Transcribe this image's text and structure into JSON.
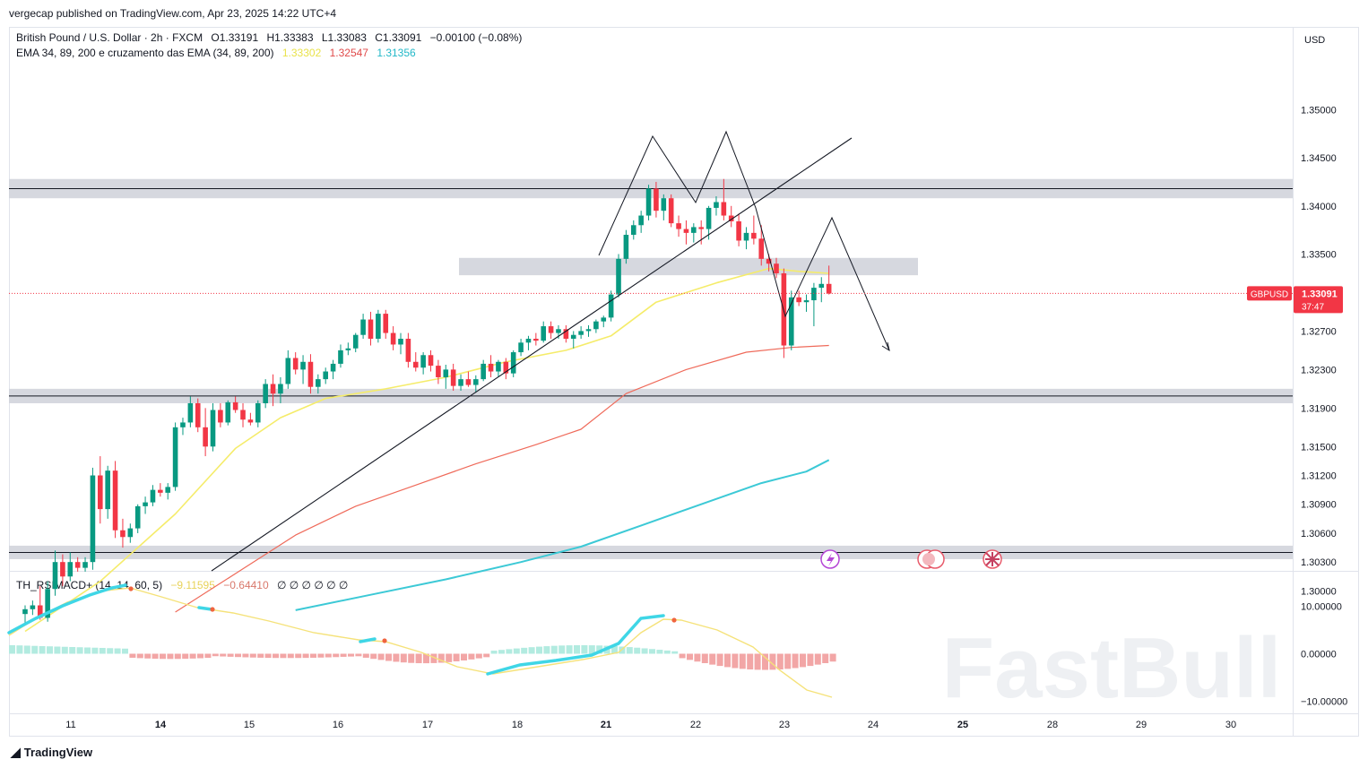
{
  "header": {
    "publisher": "vergecap published on TradingView.com, Apr 23, 2025 14:22 UTC+4"
  },
  "legend": {
    "symbol": "British Pound / U.S. Dollar · 2h · FXCM",
    "open": "O1.33191",
    "high": "H1.33383",
    "low": "L1.33083",
    "close": "C1.33091",
    "change": "−0.00100 (−0.08%)",
    "ema_label": "EMA 34, 89, 200 e cruzamento das EMA (34, 89, 200)",
    "ema34": "1.33302",
    "ema89": "1.32547",
    "ema200": "1.31356"
  },
  "indicator": {
    "label": "TH_RSIMACD+ (14, 14, 60, 5)",
    "v1": "−9.11595",
    "v2": "−0.64410",
    "empties": "∅ ∅ ∅ ∅ ∅ ∅"
  },
  "axis": {
    "currency": "USD"
  },
  "price_tag": {
    "symbol": "GBPUSD",
    "price": "1.33091",
    "countdown": "37:47"
  },
  "footer": {
    "brand": "TradingView"
  },
  "watermark": "FastBull",
  "colors": {
    "up": "#089981",
    "down": "#f23645",
    "ema34": "#f5ec6a",
    "ema89": "#ef6a5a",
    "ema200": "#3cc9d6",
    "zone": "#d1d4dc",
    "tag": "#f23645"
  },
  "chart_data": {
    "type": "candlestick",
    "ylim": [
      1.2975,
      1.351
    ],
    "price_ticks": [
      "1.35000",
      "1.34500",
      "1.34000",
      "1.33500",
      "1.32700",
      "1.32300",
      "1.31900",
      "1.31500",
      "1.31200",
      "1.30900",
      "1.30600",
      "1.30300",
      "1.30000"
    ],
    "x_ticks": [
      "11",
      "14",
      "15",
      "16",
      "17",
      "18",
      "21",
      "22",
      "23",
      "24",
      "25",
      "28",
      "29",
      "30"
    ],
    "oscillator_ticks": [
      "10.00000",
      "0.00000",
      "−10.00000"
    ],
    "oscillator_ylim": [
      -12,
      16
    ],
    "candles": [
      {
        "t": 0,
        "o": 1.2976,
        "h": 1.2985,
        "l": 1.2965,
        "c": 1.2981
      },
      {
        "t": 1,
        "o": 1.2981,
        "h": 1.299,
        "l": 1.2975,
        "c": 1.2985
      },
      {
        "t": 2,
        "o": 1.2985,
        "h": 1.3005,
        "l": 1.297,
        "c": 1.2972
      },
      {
        "t": 3,
        "o": 1.2972,
        "h": 1.301,
        "l": 1.2968,
        "c": 1.3002
      },
      {
        "t": 4,
        "o": 1.3002,
        "h": 1.3042,
        "l": 1.2995,
        "c": 1.303
      },
      {
        "t": 5,
        "o": 1.303,
        "h": 1.3038,
        "l": 1.3005,
        "c": 1.3015
      },
      {
        "t": 6,
        "o": 1.3015,
        "h": 1.304,
        "l": 1.301,
        "c": 1.303
      },
      {
        "t": 7,
        "o": 1.303,
        "h": 1.3035,
        "l": 1.302,
        "c": 1.3024
      },
      {
        "t": 8,
        "o": 1.3024,
        "h": 1.3035,
        "l": 1.302,
        "c": 1.303
      },
      {
        "t": 9,
        "o": 1.303,
        "h": 1.3128,
        "l": 1.3022,
        "c": 1.312
      },
      {
        "t": 10,
        "o": 1.312,
        "h": 1.314,
        "l": 1.307,
        "c": 1.3085
      },
      {
        "t": 11,
        "o": 1.3085,
        "h": 1.313,
        "l": 1.3075,
        "c": 1.3125
      },
      {
        "t": 12,
        "o": 1.3125,
        "h": 1.3135,
        "l": 1.3055,
        "c": 1.3063
      },
      {
        "t": 13,
        "o": 1.3063,
        "h": 1.3075,
        "l": 1.3045,
        "c": 1.3056
      },
      {
        "t": 14,
        "o": 1.3056,
        "h": 1.307,
        "l": 1.305,
        "c": 1.3065
      },
      {
        "t": 15,
        "o": 1.3065,
        "h": 1.309,
        "l": 1.306,
        "c": 1.3088
      },
      {
        "t": 16,
        "o": 1.3088,
        "h": 1.3098,
        "l": 1.308,
        "c": 1.3092
      },
      {
        "t": 17,
        "o": 1.3092,
        "h": 1.311,
        "l": 1.3088,
        "c": 1.3105
      },
      {
        "t": 18,
        "o": 1.3105,
        "h": 1.3112,
        "l": 1.3098,
        "c": 1.3102
      },
      {
        "t": 19,
        "o": 1.3102,
        "h": 1.3112,
        "l": 1.3095,
        "c": 1.3108
      },
      {
        "t": 20,
        "o": 1.3108,
        "h": 1.3175,
        "l": 1.3104,
        "c": 1.317
      },
      {
        "t": 21,
        "o": 1.317,
        "h": 1.318,
        "l": 1.3162,
        "c": 1.3175
      },
      {
        "t": 22,
        "o": 1.3175,
        "h": 1.3202,
        "l": 1.317,
        "c": 1.3195
      },
      {
        "t": 23,
        "o": 1.3195,
        "h": 1.32,
        "l": 1.3165,
        "c": 1.317
      },
      {
        "t": 24,
        "o": 1.317,
        "h": 1.319,
        "l": 1.314,
        "c": 1.315
      },
      {
        "t": 25,
        "o": 1.315,
        "h": 1.3195,
        "l": 1.3145,
        "c": 1.3188
      },
      {
        "t": 26,
        "o": 1.3188,
        "h": 1.3195,
        "l": 1.317,
        "c": 1.3175
      },
      {
        "t": 27,
        "o": 1.3175,
        "h": 1.3198,
        "l": 1.3172,
        "c": 1.3196
      },
      {
        "t": 28,
        "o": 1.3196,
        "h": 1.3202,
        "l": 1.3185,
        "c": 1.3188
      },
      {
        "t": 29,
        "o": 1.3188,
        "h": 1.3195,
        "l": 1.317,
        "c": 1.3178
      },
      {
        "t": 30,
        "o": 1.3178,
        "h": 1.3185,
        "l": 1.3172,
        "c": 1.3175
      },
      {
        "t": 31,
        "o": 1.3175,
        "h": 1.3198,
        "l": 1.317,
        "c": 1.3195
      },
      {
        "t": 32,
        "o": 1.3195,
        "h": 1.322,
        "l": 1.319,
        "c": 1.3215
      },
      {
        "t": 33,
        "o": 1.3215,
        "h": 1.3225,
        "l": 1.3192,
        "c": 1.3205
      },
      {
        "t": 34,
        "o": 1.3205,
        "h": 1.3222,
        "l": 1.3195,
        "c": 1.3215
      },
      {
        "t": 35,
        "o": 1.3215,
        "h": 1.325,
        "l": 1.321,
        "c": 1.3242
      },
      {
        "t": 36,
        "o": 1.3242,
        "h": 1.3248,
        "l": 1.3225,
        "c": 1.323
      },
      {
        "t": 37,
        "o": 1.323,
        "h": 1.3245,
        "l": 1.3215,
        "c": 1.3238
      },
      {
        "t": 38,
        "o": 1.3238,
        "h": 1.3246,
        "l": 1.3205,
        "c": 1.3212
      },
      {
        "t": 39,
        "o": 1.3212,
        "h": 1.3225,
        "l": 1.3205,
        "c": 1.322
      },
      {
        "t": 40,
        "o": 1.322,
        "h": 1.3232,
        "l": 1.3215,
        "c": 1.3228
      },
      {
        "t": 41,
        "o": 1.3228,
        "h": 1.324,
        "l": 1.322,
        "c": 1.3236
      },
      {
        "t": 42,
        "o": 1.3236,
        "h": 1.3256,
        "l": 1.3232,
        "c": 1.325
      },
      {
        "t": 43,
        "o": 1.325,
        "h": 1.3258,
        "l": 1.3245,
        "c": 1.3252
      },
      {
        "t": 44,
        "o": 1.3252,
        "h": 1.3268,
        "l": 1.3248,
        "c": 1.3266
      },
      {
        "t": 45,
        "o": 1.3266,
        "h": 1.3288,
        "l": 1.3262,
        "c": 1.3282
      },
      {
        "t": 46,
        "o": 1.3282,
        "h": 1.329,
        "l": 1.3255,
        "c": 1.3262
      },
      {
        "t": 47,
        "o": 1.3262,
        "h": 1.3292,
        "l": 1.3258,
        "c": 1.3288
      },
      {
        "t": 48,
        "o": 1.3288,
        "h": 1.3292,
        "l": 1.3262,
        "c": 1.3268
      },
      {
        "t": 49,
        "o": 1.3268,
        "h": 1.3275,
        "l": 1.325,
        "c": 1.3256
      },
      {
        "t": 50,
        "o": 1.3256,
        "h": 1.3268,
        "l": 1.3246,
        "c": 1.3262
      },
      {
        "t": 51,
        "o": 1.3262,
        "h": 1.3268,
        "l": 1.3232,
        "c": 1.3238
      },
      {
        "t": 52,
        "o": 1.3238,
        "h": 1.3248,
        "l": 1.3228,
        "c": 1.3232
      },
      {
        "t": 53,
        "o": 1.3232,
        "h": 1.3248,
        "l": 1.3225,
        "c": 1.3245
      },
      {
        "t": 54,
        "o": 1.3245,
        "h": 1.325,
        "l": 1.3228,
        "c": 1.3234
      },
      {
        "t": 55,
        "o": 1.3234,
        "h": 1.324,
        "l": 1.3215,
        "c": 1.3222
      },
      {
        "t": 56,
        "o": 1.3222,
        "h": 1.3235,
        "l": 1.321,
        "c": 1.323
      },
      {
        "t": 57,
        "o": 1.323,
        "h": 1.3236,
        "l": 1.3208,
        "c": 1.3213
      },
      {
        "t": 58,
        "o": 1.3213,
        "h": 1.3225,
        "l": 1.3208,
        "c": 1.322
      },
      {
        "t": 59,
        "o": 1.322,
        "h": 1.3228,
        "l": 1.3212,
        "c": 1.3214
      },
      {
        "t": 60,
        "o": 1.3214,
        "h": 1.3224,
        "l": 1.3206,
        "c": 1.322
      },
      {
        "t": 61,
        "o": 1.322,
        "h": 1.324,
        "l": 1.3218,
        "c": 1.3236
      },
      {
        "t": 62,
        "o": 1.3236,
        "h": 1.3245,
        "l": 1.3222,
        "c": 1.3228
      },
      {
        "t": 63,
        "o": 1.3228,
        "h": 1.324,
        "l": 1.3222,
        "c": 1.3238
      },
      {
        "t": 64,
        "o": 1.3238,
        "h": 1.3242,
        "l": 1.322,
        "c": 1.3226
      },
      {
        "t": 65,
        "o": 1.3226,
        "h": 1.325,
        "l": 1.3222,
        "c": 1.3248
      },
      {
        "t": 66,
        "o": 1.3248,
        "h": 1.3262,
        "l": 1.3244,
        "c": 1.3258
      },
      {
        "t": 67,
        "o": 1.3258,
        "h": 1.3265,
        "l": 1.325,
        "c": 1.3262
      },
      {
        "t": 68,
        "o": 1.3262,
        "h": 1.3268,
        "l": 1.3255,
        "c": 1.326
      },
      {
        "t": 69,
        "o": 1.326,
        "h": 1.328,
        "l": 1.3258,
        "c": 1.3275
      },
      {
        "t": 70,
        "o": 1.3275,
        "h": 1.328,
        "l": 1.3262,
        "c": 1.3268
      },
      {
        "t": 71,
        "o": 1.3268,
        "h": 1.3276,
        "l": 1.3262,
        "c": 1.3272
      },
      {
        "t": 72,
        "o": 1.3272,
        "h": 1.3276,
        "l": 1.3258,
        "c": 1.3262
      },
      {
        "t": 73,
        "o": 1.3262,
        "h": 1.327,
        "l": 1.3252,
        "c": 1.3266
      },
      {
        "t": 74,
        "o": 1.3266,
        "h": 1.3275,
        "l": 1.3262,
        "c": 1.327
      },
      {
        "t": 75,
        "o": 1.327,
        "h": 1.3276,
        "l": 1.3264,
        "c": 1.3272
      },
      {
        "t": 76,
        "o": 1.3272,
        "h": 1.3282,
        "l": 1.3268,
        "c": 1.328
      },
      {
        "t": 77,
        "o": 1.328,
        "h": 1.3286,
        "l": 1.3274,
        "c": 1.3284
      },
      {
        "t": 78,
        "o": 1.3284,
        "h": 1.3312,
        "l": 1.328,
        "c": 1.3308
      },
      {
        "t": 79,
        "o": 1.3308,
        "h": 1.335,
        "l": 1.3305,
        "c": 1.3345
      },
      {
        "t": 80,
        "o": 1.3345,
        "h": 1.3375,
        "l": 1.334,
        "c": 1.337
      },
      {
        "t": 81,
        "o": 1.337,
        "h": 1.3385,
        "l": 1.3365,
        "c": 1.338
      },
      {
        "t": 82,
        "o": 1.338,
        "h": 1.3395,
        "l": 1.3372,
        "c": 1.339
      },
      {
        "t": 83,
        "o": 1.339,
        "h": 1.3422,
        "l": 1.3385,
        "c": 1.3418
      },
      {
        "t": 84,
        "o": 1.3418,
        "h": 1.3425,
        "l": 1.3388,
        "c": 1.3395
      },
      {
        "t": 85,
        "o": 1.3395,
        "h": 1.3412,
        "l": 1.3385,
        "c": 1.3408
      },
      {
        "t": 86,
        "o": 1.3408,
        "h": 1.3412,
        "l": 1.3378,
        "c": 1.3382
      },
      {
        "t": 87,
        "o": 1.3382,
        "h": 1.339,
        "l": 1.3368,
        "c": 1.3376
      },
      {
        "t": 88,
        "o": 1.3376,
        "h": 1.3385,
        "l": 1.336,
        "c": 1.3372
      },
      {
        "t": 89,
        "o": 1.3372,
        "h": 1.3382,
        "l": 1.3362,
        "c": 1.3378
      },
      {
        "t": 90,
        "o": 1.3378,
        "h": 1.3385,
        "l": 1.336,
        "c": 1.3376
      },
      {
        "t": 91,
        "o": 1.3376,
        "h": 1.34,
        "l": 1.3365,
        "c": 1.3398
      },
      {
        "t": 92,
        "o": 1.3398,
        "h": 1.341,
        "l": 1.339,
        "c": 1.3404
      },
      {
        "t": 93,
        "o": 1.3404,
        "h": 1.3428,
        "l": 1.3385,
        "c": 1.339
      },
      {
        "t": 94,
        "o": 1.339,
        "h": 1.34,
        "l": 1.3378,
        "c": 1.3384
      },
      {
        "t": 95,
        "o": 1.3384,
        "h": 1.3392,
        "l": 1.3358,
        "c": 1.3364
      },
      {
        "t": 96,
        "o": 1.3364,
        "h": 1.3378,
        "l": 1.3355,
        "c": 1.3372
      },
      {
        "t": 97,
        "o": 1.3372,
        "h": 1.339,
        "l": 1.336,
        "c": 1.3366
      },
      {
        "t": 98,
        "o": 1.3366,
        "h": 1.338,
        "l": 1.3338,
        "c": 1.3345
      },
      {
        "t": 99,
        "o": 1.3345,
        "h": 1.335,
        "l": 1.3332,
        "c": 1.334
      },
      {
        "t": 100,
        "o": 1.334,
        "h": 1.3346,
        "l": 1.3325,
        "c": 1.333
      },
      {
        "t": 101,
        "o": 1.333,
        "h": 1.3335,
        "l": 1.3242,
        "c": 1.3255
      },
      {
        "t": 102,
        "o": 1.3255,
        "h": 1.3312,
        "l": 1.325,
        "c": 1.3305
      },
      {
        "t": 103,
        "o": 1.3305,
        "h": 1.3312,
        "l": 1.3296,
        "c": 1.33
      },
      {
        "t": 104,
        "o": 1.33,
        "h": 1.3308,
        "l": 1.329,
        "c": 1.3302
      },
      {
        "t": 105,
        "o": 1.3302,
        "h": 1.332,
        "l": 1.3275,
        "c": 1.3315
      },
      {
        "t": 106,
        "o": 1.3315,
        "h": 1.3326,
        "l": 1.33,
        "c": 1.3319
      },
      {
        "t": 107,
        "o": 1.3319,
        "h": 1.3338,
        "l": 1.3308,
        "c": 1.3309
      }
    ],
    "ema34": [
      [
        0,
        1.2958
      ],
      [
        10,
        1.301
      ],
      [
        20,
        1.308
      ],
      [
        28,
        1.3148
      ],
      [
        34,
        1.318
      ],
      [
        40,
        1.32
      ],
      [
        48,
        1.321
      ],
      [
        56,
        1.3222
      ],
      [
        64,
        1.3238
      ],
      [
        72,
        1.325
      ],
      [
        78,
        1.3265
      ],
      [
        84,
        1.33
      ],
      [
        92,
        1.332
      ],
      [
        99,
        1.3335
      ],
      [
        103,
        1.3332
      ],
      [
        107,
        1.333
      ]
    ],
    "ema89": [
      [
        20,
        1.2978
      ],
      [
        28,
        1.3018
      ],
      [
        36,
        1.3058
      ],
      [
        44,
        1.3088
      ],
      [
        52,
        1.311
      ],
      [
        60,
        1.3132
      ],
      [
        68,
        1.3152
      ],
      [
        74,
        1.3168
      ],
      [
        80,
        1.3205
      ],
      [
        88,
        1.323
      ],
      [
        96,
        1.3248
      ],
      [
        102,
        1.3253
      ],
      [
        107,
        1.3255
      ]
    ],
    "ema200": [
      [
        36,
        1.298
      ],
      [
        46,
        1.2996
      ],
      [
        56,
        1.3012
      ],
      [
        66,
        1.303
      ],
      [
        74,
        1.3046
      ],
      [
        82,
        1.3068
      ],
      [
        90,
        1.309
      ],
      [
        98,
        1.3112
      ],
      [
        104,
        1.3124
      ],
      [
        107,
        1.3136
      ]
    ],
    "zones": [
      [
        1.3408,
        1.3428
      ],
      [
        1.3328,
        1.3346
      ],
      [
        1.3195,
        1.321
      ],
      [
        1.3033,
        1.3047
      ]
    ]
  }
}
